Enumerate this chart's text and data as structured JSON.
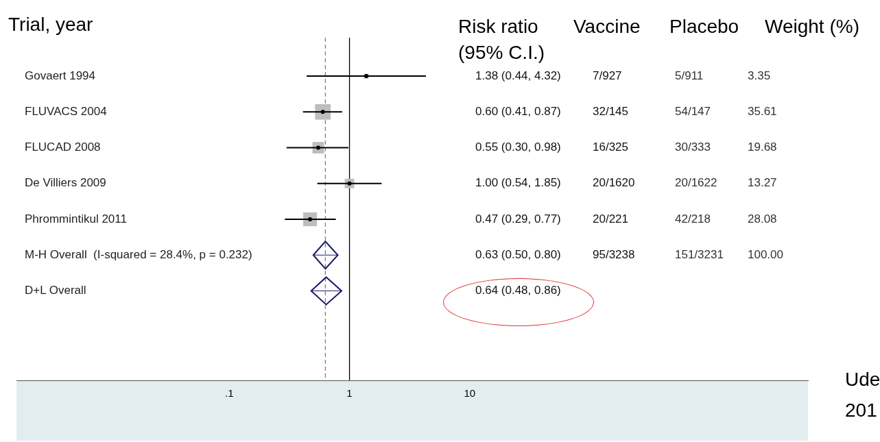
{
  "chart_data": {
    "type": "scatter",
    "orientation": "horizontal",
    "ylabel": "Trial, year",
    "categories": [
      "Govaert 1994",
      "FLUVACS 2004",
      "FLUCAD 2008",
      "De Villiers 2009",
      "Phrommintikul 2011",
      "M-H Overall  (I-squared = 28.4%, p = 0.232)",
      "D+L Overall"
    ],
    "series": [
      {
        "type": "bubble",
        "marker": "square",
        "color": "#bdbdbd",
        "values": [
          1.38,
          0.6,
          0.55,
          1.0,
          0.47,
          null,
          null
        ],
        "sizes": [
          0.094,
          1,
          0.553,
          0.373,
          0.789,
          null,
          null
        ],
        "errors": [
          [
            0.44,
            4.32
          ],
          [
            0.41,
            0.87
          ],
          [
            0.3,
            0.98
          ],
          [
            0.54,
            1.85
          ],
          [
            0.29,
            0.77
          ],
          null,
          null
        ]
      },
      {
        "type": "scatter",
        "marker": "diamond",
        "color": "#1a1a6e",
        "values": [
          null,
          null,
          null,
          null,
          null,
          0.63,
          0.64
        ],
        "errors": [
          null,
          null,
          null,
          null,
          null,
          [
            0.5,
            0.8
          ],
          [
            0.48,
            0.86
          ]
        ]
      }
    ],
    "log": "x",
    "xlim": [
      0.0017,
      6500
    ],
    "xticks": [
      {
        "value": 0.1,
        "label": ".1"
      },
      1,
      10
    ],
    "grid": false,
    "legend": false,
    "ref_lines": [
      {
        "axis": "x",
        "value": 1,
        "color": "#000000",
        "line_style": "solid"
      },
      {
        "axis": "x",
        "value": 0.63,
        "color": "#a07080",
        "line_style": "dashed"
      }
    ],
    "annotations": [
      "Risk ratio (95% C.I.)",
      "Vaccine",
      "Placebo",
      "Weight (%)",
      "Ude",
      "201",
      "1.38 (0.44, 4.32)",
      "7/927",
      "5/911",
      "3.35",
      "0.60 (0.41, 0.87)",
      "32/145",
      "54/147",
      "35.61",
      "0.55 (0.30, 0.98)",
      "16/325",
      "30/333",
      "19.68",
      "1.00 (0.54, 1.85)",
      "20/1620",
      "20/1622",
      "13.27",
      "0.47 (0.29, 0.77)",
      "20/221",
      "42/218",
      "28.08",
      "0.63 (0.50, 0.80)",
      "95/3238",
      "151/3231",
      "100.00",
      "0.64 (0.48, 0.86)"
    ]
  }
}
